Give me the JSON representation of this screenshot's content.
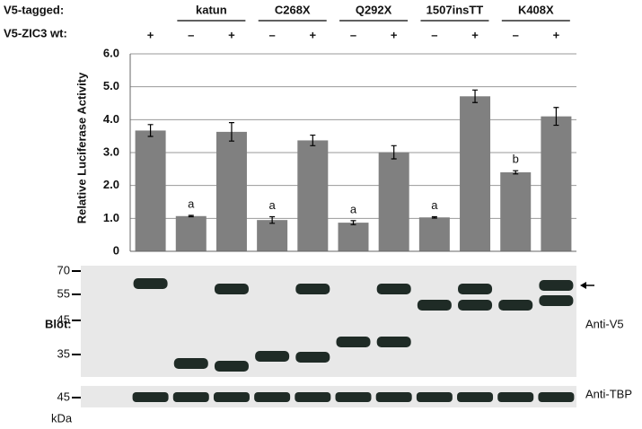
{
  "header": {
    "row_labels": [
      "V5-tagged:",
      "V5-ZIC3 wt:"
    ],
    "groups": [
      "katun",
      "C268X",
      "Q292X",
      "1507insTT",
      "K408X"
    ]
  },
  "chart_data": {
    "type": "bar",
    "y_label": "Relative Luciferase Activity",
    "categories": [
      "+",
      "–",
      "+",
      "–",
      "+",
      "–",
      "+",
      "–",
      "+",
      "–",
      "+"
    ],
    "values": [
      3.67,
      1.07,
      3.63,
      0.95,
      3.37,
      0.87,
      3.01,
      1.03,
      4.71,
      2.4,
      4.1
    ],
    "errors": [
      0.18,
      0.02,
      0.28,
      0.1,
      0.16,
      0.06,
      0.2,
      0.02,
      0.19,
      0.05,
      0.27
    ],
    "annotations": [
      null,
      "a",
      null,
      "a",
      null,
      "a",
      null,
      "a",
      null,
      "b",
      null
    ],
    "color": "#808080",
    "ylim": [
      0,
      6
    ],
    "yticks": [
      0,
      {
        "value": 1,
        "label": "1.0"
      },
      {
        "value": 2,
        "label": "2.0"
      },
      {
        "value": 3,
        "label": "3.0"
      },
      {
        "value": 4,
        "label": "4.0"
      },
      {
        "value": 5,
        "label": "5.0"
      },
      {
        "value": 6,
        "label": "6.0"
      }
    ],
    "grid": true
  },
  "blot": {
    "label": "Blot:",
    "v5_markers": [
      "70",
      "55",
      "45",
      "35"
    ],
    "tbp_marker": "45",
    "unit": "kDa",
    "v5_antibody": "Anti-V5",
    "tbp_antibody": "Anti-TBP"
  }
}
